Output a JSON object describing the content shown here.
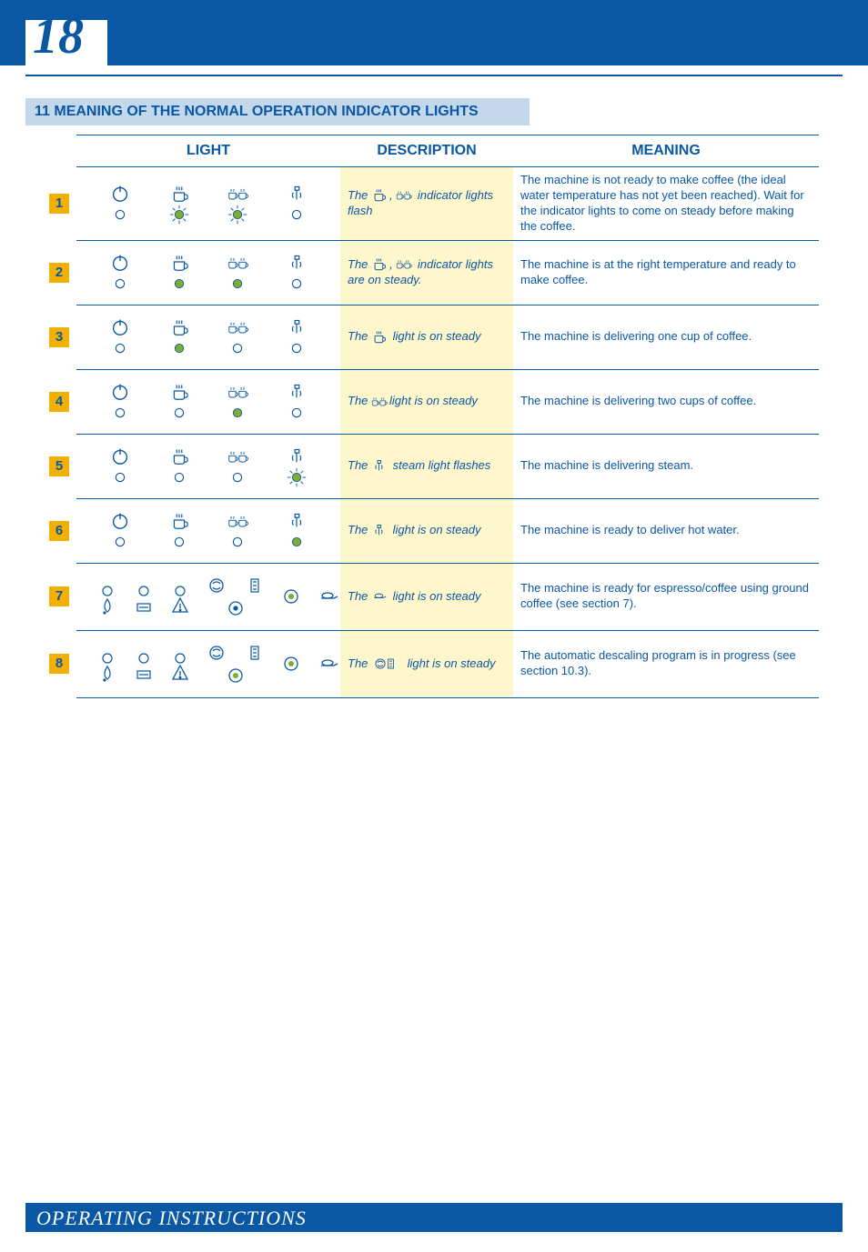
{
  "page_number": "18",
  "section_title": "11 MEANING OF THE NORMAL OPERATION INDICATOR LIGHTS",
  "footer": "OPERATING INSTRUCTIONS",
  "colors": {
    "brand_blue": "#0a57a4",
    "header_light_blue": "#c4d8ec",
    "desc_bg": "#fff7cc",
    "badge_bg": "#f2b100",
    "led_green": "#7fae2f",
    "led_outline": "#0a57a4"
  },
  "headers": {
    "light": "LIGHT",
    "description": "DESCRIPTION",
    "meaning": "MEANING"
  },
  "rows": [
    {
      "num": "1",
      "desc_pre": "The ",
      "desc_icons": "cup, two-cup",
      "desc_post": " indicator lights flash",
      "meaning": "The machine is not ready to make coffee (the ideal water temperature has not yet been reached). Wait for the indicator lights to come on steady before making the coffee.",
      "lights": {
        "power": "off",
        "cup": "flash",
        "two_cup": "flash",
        "steam": "off"
      }
    },
    {
      "num": "2",
      "desc_pre": "The ",
      "desc_icons": "cup, two-cup",
      "desc_post": " indicator lights are on steady.",
      "meaning": "The machine is at the right temperature and ready to make coffee.",
      "lights": {
        "power": "off",
        "cup": "on",
        "two_cup": "on",
        "steam": "off"
      }
    },
    {
      "num": "3",
      "desc_pre": "The ",
      "desc_icons": "cup",
      "desc_post": " light is on steady",
      "meaning": "The machine is delivering one cup of coffee.",
      "lights": {
        "power": "off",
        "cup": "on",
        "two_cup": "off",
        "steam": "off"
      }
    },
    {
      "num": "4",
      "desc_pre": "The ",
      "desc_icons": "two-cup",
      "desc_post": "light is on steady",
      "meaning": "The machine is delivering two cups of coffee.",
      "lights": {
        "power": "off",
        "cup": "off",
        "two_cup": "on",
        "steam": "off"
      }
    },
    {
      "num": "5",
      "desc_pre": "The ",
      "desc_icons": "steam",
      "desc_post": " steam light flashes",
      "meaning": "The machine is delivering steam.",
      "lights": {
        "power": "off",
        "cup": "off",
        "two_cup": "off",
        "steam": "flash"
      }
    },
    {
      "num": "6",
      "desc_pre": "The ",
      "desc_icons": "steam",
      "desc_post": " light is on steady",
      "meaning": "The machine is ready to deliver hot water.",
      "lights": {
        "power": "off",
        "cup": "off",
        "two_cup": "off",
        "steam": "on"
      }
    },
    {
      "num": "7",
      "desc_pre": "The ",
      "desc_icons": "ground",
      "desc_post": " light is on steady",
      "meaning": "The machine is ready for espresso/coffee using ground coffee (see section  7).",
      "lights": {
        "set": "lower",
        "ground": "on",
        "rinse": "off"
      }
    },
    {
      "num": "8",
      "desc_pre": "The ",
      "desc_icons": "rinse-descale",
      "desc_post": " light is on steady",
      "meaning": "The automatic descaling program is in progress (see section 10.3).",
      "lights": {
        "set": "lower",
        "ground": "on",
        "rinse": "on"
      }
    }
  ]
}
